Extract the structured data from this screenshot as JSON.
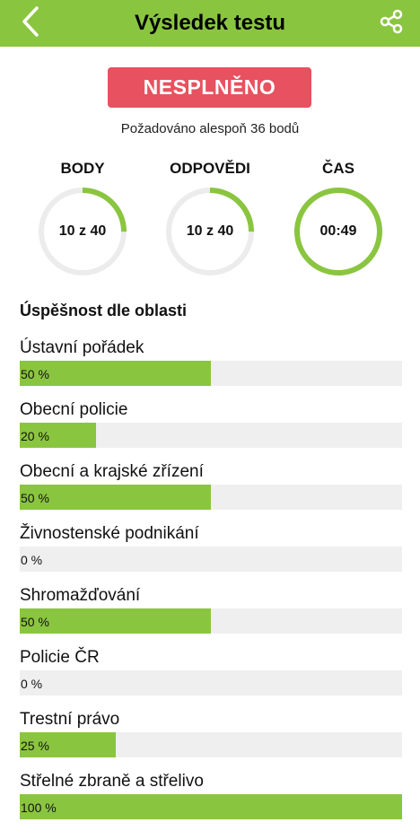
{
  "header": {
    "title": "Výsledek testu",
    "back_icon": "chevron-left-icon",
    "share_icon": "share-icon"
  },
  "result": {
    "status": "NESPLNĚNO",
    "requirement": "Požadováno alespoň 36 bodů"
  },
  "stats": [
    {
      "label": "BODY",
      "value": "10 z 40",
      "progress": 0.25
    },
    {
      "label": "ODPOVĚDI",
      "value": "10 z 40",
      "progress": 0.25
    },
    {
      "label": "ČAS",
      "value": "00:49",
      "progress": 1.0
    }
  ],
  "areas_section": {
    "title": "Úspěšnost dle oblasti",
    "items": [
      {
        "name": "Ústavní pořádek",
        "percent_label": "50 %",
        "percent": 50
      },
      {
        "name": "Obecní policie",
        "percent_label": "20 %",
        "percent": 20
      },
      {
        "name": "Obecní a krajské zřízení",
        "percent_label": "50 %",
        "percent": 50
      },
      {
        "name": "Živnostenské podnikání",
        "percent_label": "0 %",
        "percent": 0
      },
      {
        "name": "Shromažďování",
        "percent_label": "50 %",
        "percent": 50
      },
      {
        "name": "Policie ČR",
        "percent_label": "0 %",
        "percent": 0
      },
      {
        "name": "Trestní právo",
        "percent_label": "25 %",
        "percent": 25
      },
      {
        "name": "Střelné zbraně a střelivo",
        "percent_label": "100 %",
        "percent": 100
      }
    ]
  },
  "colors": {
    "accent": "#8ac540",
    "fail": "#e8515f",
    "track": "#efefef"
  }
}
